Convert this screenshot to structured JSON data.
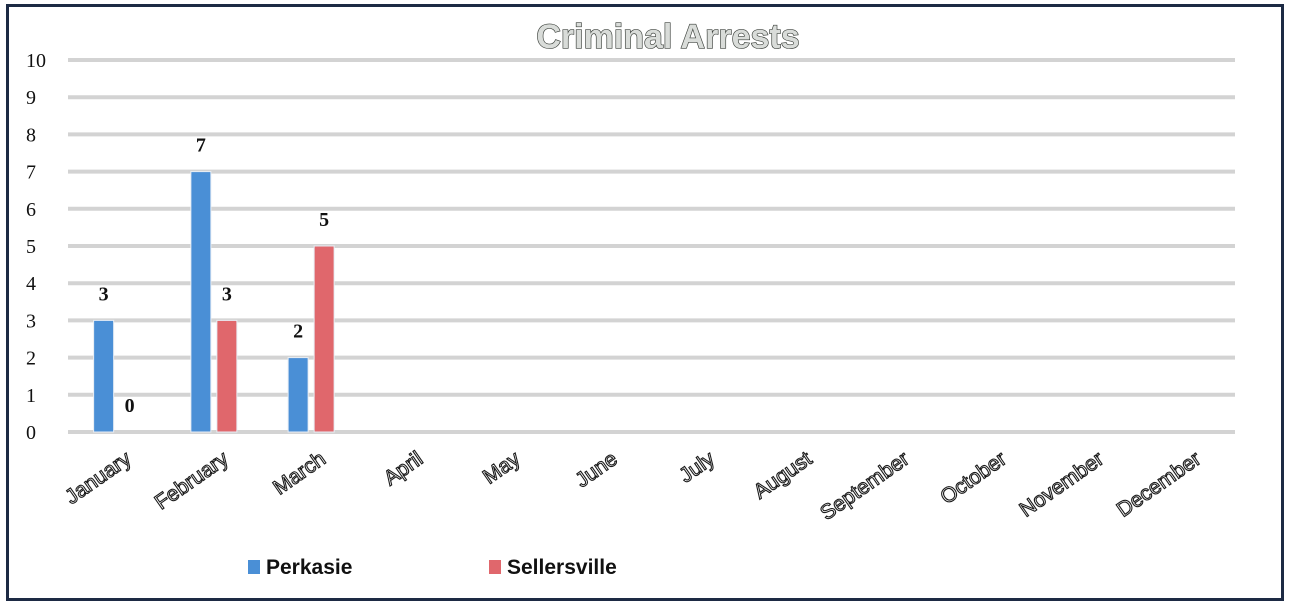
{
  "chart_data": {
    "type": "bar",
    "title": "Criminal Arrests",
    "categories": [
      "January",
      "February",
      "March",
      "April",
      "May",
      "June",
      "July",
      "August",
      "September",
      "October",
      "November",
      "December"
    ],
    "series": [
      {
        "name": "Perkasie",
        "values": [
          3,
          7,
          2,
          null,
          null,
          null,
          null,
          null,
          null,
          null,
          null,
          null
        ],
        "color": "#4a8fd6"
      },
      {
        "name": "Sellersville",
        "values": [
          0,
          3,
          5,
          null,
          null,
          null,
          null,
          null,
          null,
          null,
          null,
          null
        ],
        "color": "#e0676c"
      }
    ],
    "ylim": [
      0,
      10
    ],
    "yticks": [
      "0",
      "1",
      "2",
      "3",
      "4",
      "5",
      "6",
      "7",
      "8",
      "9",
      "10"
    ],
    "grid": true,
    "legend_position": "bottom-left"
  }
}
